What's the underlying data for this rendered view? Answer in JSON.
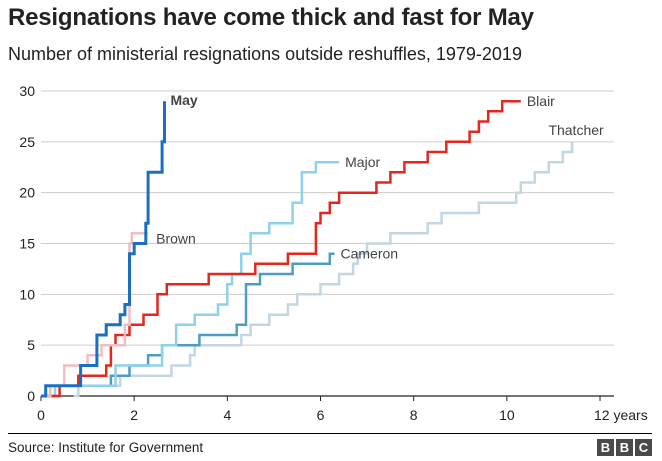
{
  "header": {
    "title": "Resignations have come thick and fast for May",
    "subtitle": "Number of ministerial resignations outside reshuffles, 1979-2019"
  },
  "footer": {
    "source": "Source: Institute for Government",
    "logo_letters": [
      "B",
      "B",
      "C"
    ]
  },
  "chart_data": {
    "type": "line",
    "title": "Resignations have come thick and fast for May",
    "subtitle": "Number of ministerial resignations outside reshuffles, 1979-2019",
    "xlabel": "",
    "ylabel": "",
    "x_unit_label": "years",
    "xlim": [
      0,
      12.3
    ],
    "ylim": [
      0,
      30
    ],
    "x_ticks": [
      0,
      2,
      4,
      6,
      8,
      10,
      12
    ],
    "x_tick_labels": [
      "0",
      "2",
      "4",
      "6",
      "8",
      "10",
      "12 years"
    ],
    "y_ticks": [
      0,
      5,
      10,
      15,
      20,
      25,
      30
    ],
    "grid": "horizontal",
    "legend": "direct labels at line ends",
    "series": [
      {
        "name": "Thatcher",
        "color": "#c3d6e3",
        "width": 2.5,
        "bold": false,
        "points": [
          [
            0.7,
            0
          ],
          [
            0.8,
            1
          ],
          [
            1.6,
            1
          ],
          [
            1.7,
            2
          ],
          [
            2.6,
            2
          ],
          [
            2.8,
            3
          ],
          [
            3.2,
            4
          ],
          [
            3.3,
            5
          ],
          [
            4.3,
            6
          ],
          [
            4.5,
            7
          ],
          [
            4.9,
            8
          ],
          [
            5.3,
            9
          ],
          [
            5.5,
            10
          ],
          [
            6.0,
            11
          ],
          [
            6.4,
            12
          ],
          [
            6.7,
            13
          ],
          [
            6.8,
            14
          ],
          [
            7.0,
            15
          ],
          [
            7.5,
            16
          ],
          [
            8.3,
            17
          ],
          [
            8.6,
            18
          ],
          [
            9.4,
            19
          ],
          [
            10.2,
            20
          ],
          [
            10.3,
            21
          ],
          [
            10.6,
            22
          ],
          [
            10.9,
            23
          ],
          [
            11.2,
            24
          ],
          [
            11.4,
            25
          ]
        ]
      },
      {
        "name": "Cameron",
        "color": "#4d9cc2",
        "width": 2.5,
        "bold": false,
        "points": [
          [
            0,
            0
          ],
          [
            0.1,
            1
          ],
          [
            1.4,
            1
          ],
          [
            1.5,
            2
          ],
          [
            1.9,
            3
          ],
          [
            2.3,
            4
          ],
          [
            2.6,
            5
          ],
          [
            3.2,
            5
          ],
          [
            3.4,
            6
          ],
          [
            4.2,
            7
          ],
          [
            4.4,
            11
          ],
          [
            4.7,
            12
          ],
          [
            5.4,
            13
          ],
          [
            6.2,
            14
          ],
          [
            6.3,
            14
          ]
        ]
      },
      {
        "name": "Major",
        "color": "#8fd0ec",
        "width": 2.5,
        "bold": false,
        "points": [
          [
            0,
            0
          ],
          [
            0.3,
            1
          ],
          [
            1.3,
            1
          ],
          [
            1.6,
            3
          ],
          [
            2.3,
            3
          ],
          [
            2.6,
            5
          ],
          [
            2.9,
            7
          ],
          [
            3.3,
            8
          ],
          [
            3.8,
            9
          ],
          [
            4.0,
            11
          ],
          [
            4.1,
            12
          ],
          [
            4.3,
            14
          ],
          [
            4.5,
            16
          ],
          [
            4.9,
            17
          ],
          [
            5.4,
            19
          ],
          [
            5.6,
            22
          ],
          [
            5.9,
            23
          ],
          [
            6.4,
            23
          ]
        ]
      },
      {
        "name": "Blair",
        "color": "#e3271c",
        "width": 2.5,
        "bold": false,
        "points": [
          [
            0,
            0
          ],
          [
            0.4,
            1
          ],
          [
            0.8,
            2
          ],
          [
            1.4,
            3
          ],
          [
            1.5,
            5
          ],
          [
            1.6,
            6
          ],
          [
            1.9,
            7
          ],
          [
            2.2,
            8
          ],
          [
            2.5,
            10
          ],
          [
            2.7,
            11
          ],
          [
            3.6,
            12
          ],
          [
            4.6,
            13
          ],
          [
            5.3,
            14
          ],
          [
            5.9,
            15
          ],
          [
            5.9,
            17
          ],
          [
            6.0,
            18
          ],
          [
            6.2,
            19
          ],
          [
            6.4,
            20
          ],
          [
            7.2,
            21
          ],
          [
            7.5,
            22
          ],
          [
            7.8,
            23
          ],
          [
            8.3,
            24
          ],
          [
            8.7,
            25
          ],
          [
            9.2,
            26
          ],
          [
            9.4,
            27
          ],
          [
            9.6,
            28
          ],
          [
            9.9,
            29
          ],
          [
            10.3,
            29
          ]
        ]
      },
      {
        "name": "Brown",
        "color": "#f0bec0",
        "width": 2.5,
        "bold": false,
        "points": [
          [
            0,
            0
          ],
          [
            0.2,
            1
          ],
          [
            0.5,
            3
          ],
          [
            0.8,
            3
          ],
          [
            1.0,
            4
          ],
          [
            1.3,
            5
          ],
          [
            1.8,
            7
          ],
          [
            1.9,
            15
          ],
          [
            1.95,
            16
          ],
          [
            2.3,
            16
          ]
        ]
      },
      {
        "name": "May",
        "color": "#1a6fc0",
        "width": 3,
        "bold": true,
        "points": [
          [
            0,
            0
          ],
          [
            0.1,
            1
          ],
          [
            0.8,
            1
          ],
          [
            0.85,
            3
          ],
          [
            1.1,
            3
          ],
          [
            1.2,
            6
          ],
          [
            1.4,
            7
          ],
          [
            1.7,
            8
          ],
          [
            1.8,
            9
          ],
          [
            1.9,
            14
          ],
          [
            2.0,
            15
          ],
          [
            2.25,
            17
          ],
          [
            2.3,
            22
          ],
          [
            2.6,
            25
          ],
          [
            2.65,
            29
          ]
        ]
      }
    ]
  }
}
